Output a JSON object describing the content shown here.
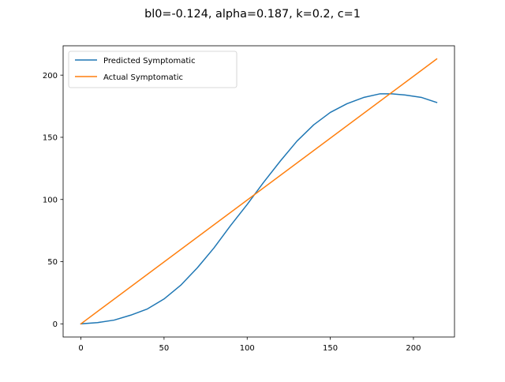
{
  "chart_data": {
    "type": "line",
    "title": "bl0=-0.124, alpha=0.187, k=0.2, c=1",
    "xlabel": "",
    "ylabel": "",
    "xlim": [
      -10.7,
      224.7
    ],
    "ylim": [
      -10.6,
      223.6
    ],
    "x_ticks": [
      0,
      50,
      100,
      150,
      200
    ],
    "y_ticks": [
      0,
      50,
      100,
      150,
      200
    ],
    "grid": false,
    "legend_position": "upper left",
    "series": [
      {
        "name": "Predicted Symptomatic",
        "color": "#1f77b4",
        "x": [
          0,
          10,
          20,
          30,
          40,
          50,
          60,
          70,
          80,
          90,
          100,
          110,
          120,
          130,
          140,
          150,
          160,
          170,
          180,
          187,
          195,
          205,
          214
        ],
        "y": [
          0,
          1,
          3,
          7,
          12,
          20,
          31,
          45,
          61,
          79,
          96,
          114,
          131,
          147,
          160,
          170,
          177,
          182,
          185,
          185,
          184,
          182,
          178
        ]
      },
      {
        "name": "Actual Symptomatic",
        "color": "#ff7f0e",
        "x": [
          0,
          214
        ],
        "y": [
          0,
          213
        ]
      }
    ]
  }
}
